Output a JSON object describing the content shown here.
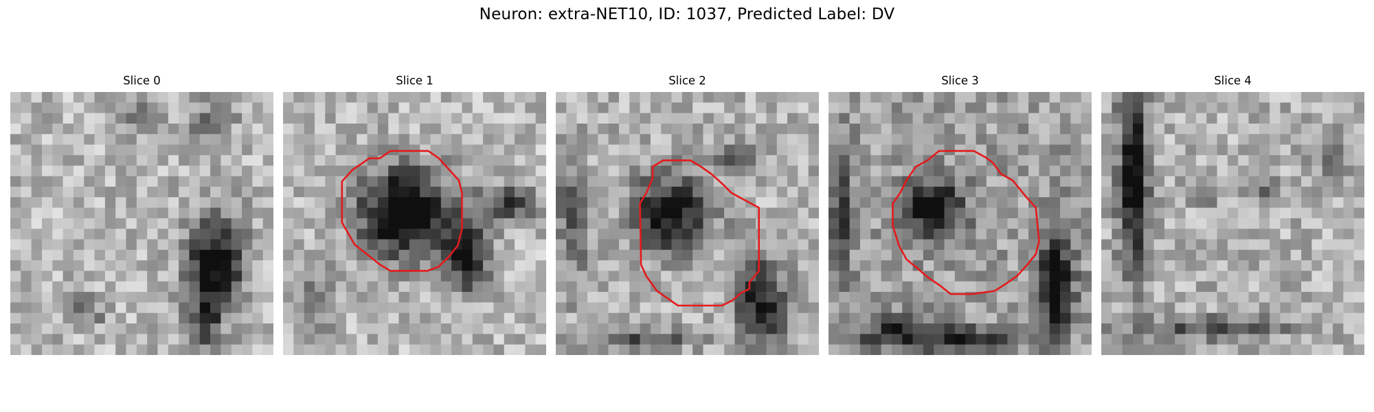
{
  "figure": {
    "title": "Neuron: extra-NET10, ID: 1037, Predicted Label: DV"
  },
  "panels": [
    {
      "title": "Slice 0",
      "roi": false
    },
    {
      "title": "Slice 1",
      "roi": true,
      "roi_color": "#e41a1c"
    },
    {
      "title": "Slice 2",
      "roi": true,
      "roi_color": "#e41a1c"
    },
    {
      "title": "Slice 3",
      "roi": true,
      "roi_color": "#e41a1c"
    },
    {
      "title": "Slice 4",
      "roi": false
    }
  ],
  "colors": {
    "background": "#ffffff",
    "roi": "#e41a1c"
  }
}
